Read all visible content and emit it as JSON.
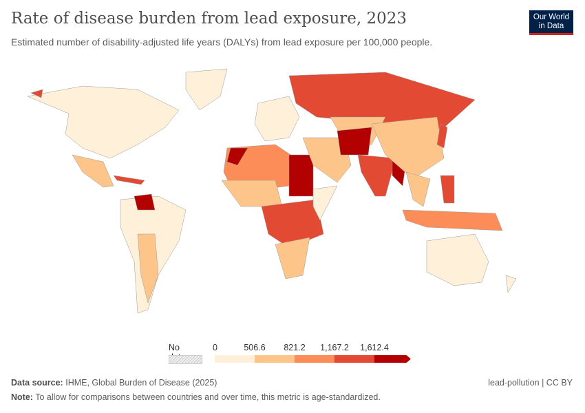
{
  "title": "Rate of disease burden from lead exposure, 2023",
  "subtitle": "Estimated number of disability-adjusted life years (DALYs) from lead exposure per 100,000 people.",
  "logo": {
    "line1": "Our World",
    "line2": "in Data"
  },
  "legend": {
    "no_data": "No data",
    "ticks": [
      "0",
      "506.6",
      "821.2",
      "1,167.2",
      "1,612.4"
    ],
    "colors": [
      "#fef0d9",
      "#fdc58a",
      "#fc8d59",
      "#e34a33",
      "#b30000"
    ],
    "no_data_color": "#e6e6e6"
  },
  "footer": {
    "source_label": "Data source:",
    "source": "IHME, Global Burden of Disease (2025)",
    "note_label": "Note:",
    "note": "To allow for comparisons between countries and over time, this metric is age-standardized.",
    "slug": "lead-pollution | CC BY"
  }
}
